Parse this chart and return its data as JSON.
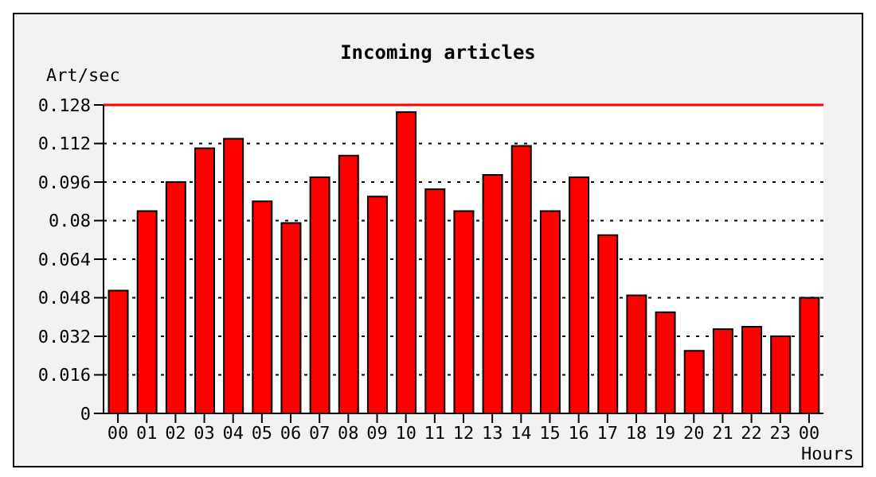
{
  "chart_data": {
    "type": "bar",
    "title": "Incoming articles",
    "ylabel": "Art/sec",
    "xlabel": "Hours",
    "categories": [
      "00",
      "01",
      "02",
      "03",
      "04",
      "05",
      "06",
      "07",
      "08",
      "09",
      "10",
      "11",
      "12",
      "13",
      "14",
      "15",
      "16",
      "17",
      "18",
      "19",
      "20",
      "21",
      "22",
      "23",
      "00"
    ],
    "values": [
      0.051,
      0.084,
      0.096,
      0.11,
      0.114,
      0.088,
      0.079,
      0.098,
      0.107,
      0.09,
      0.125,
      0.093,
      0.084,
      0.099,
      0.111,
      0.084,
      0.098,
      0.074,
      0.049,
      0.042,
      0.026,
      0.035,
      0.036,
      0.032,
      0.048
    ],
    "color": "#ff0000",
    "ylim": [
      0,
      0.128
    ],
    "yticks": [
      0,
      0.016,
      0.032,
      0.048,
      0.064,
      0.08,
      0.096,
      0.112,
      0.128
    ],
    "grid": "y",
    "ref_lines": [
      {
        "axis": "y",
        "value": 0.128,
        "color": "#ff0000"
      }
    ]
  }
}
